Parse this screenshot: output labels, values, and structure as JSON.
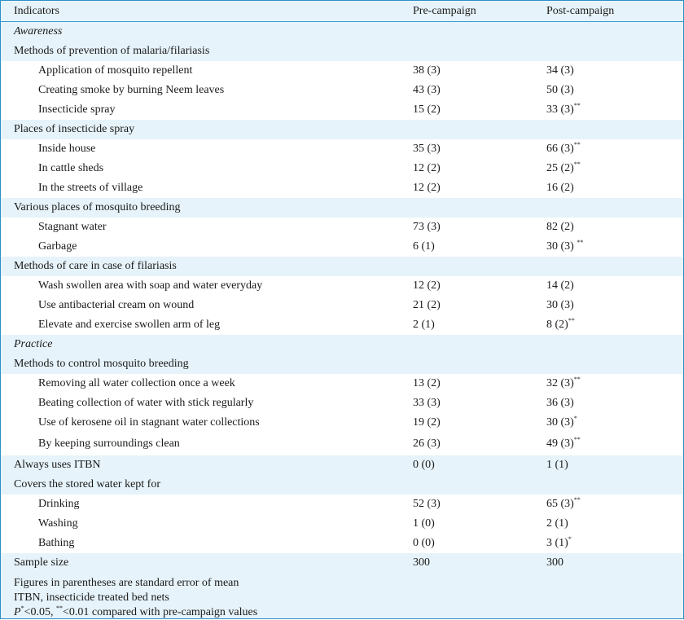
{
  "headers": {
    "indicators": "Indicators",
    "pre": "Pre-campaign",
    "post": "Post-campaign"
  },
  "rows": [
    {
      "type": "section",
      "label": "Awareness"
    },
    {
      "type": "group",
      "label": "Methods of prevention of malaria/filariasis"
    },
    {
      "type": "item",
      "label": "Application of mosquito repellent",
      "pre": "38 (3)",
      "post": "34 (3)",
      "post_sup": ""
    },
    {
      "type": "item",
      "label": "Creating smoke by burning Neem leaves",
      "pre": "43 (3)",
      "post": "50 (3)",
      "post_sup": ""
    },
    {
      "type": "item",
      "label": "Insecticide spray",
      "pre": "15 (2)",
      "post": "33 (3)",
      "post_sup": "**"
    },
    {
      "type": "group",
      "label": "Places of insecticide spray"
    },
    {
      "type": "item",
      "label": "Inside house",
      "pre": "35 (3)",
      "post": "66 (3)",
      "post_sup": "**"
    },
    {
      "type": "item",
      "label": "In cattle sheds",
      "pre": "12 (2)",
      "post": "25 (2)",
      "post_sup": "**"
    },
    {
      "type": "item",
      "label": "In the streets of village",
      "pre": "12 (2)",
      "post": "16 (2)",
      "post_sup": ""
    },
    {
      "type": "group",
      "label": "Various places of mosquito breeding"
    },
    {
      "type": "item",
      "label": "Stagnant water",
      "pre": "73 (3)",
      "post": "82 (2)",
      "post_sup": ""
    },
    {
      "type": "item",
      "label": "Garbage",
      "pre": "6 (1)",
      "post": "30 (3) ",
      "post_sup": "**"
    },
    {
      "type": "group",
      "label": "Methods of care in case of filariasis"
    },
    {
      "type": "item",
      "label": "Wash swollen area with soap and water everyday",
      "pre": "12 (2)",
      "post": "14 (2)",
      "post_sup": ""
    },
    {
      "type": "item",
      "label": "Use antibacterial cream on wound",
      "pre": "21 (2)",
      "post": "30 (3)",
      "post_sup": ""
    },
    {
      "type": "item",
      "label": "Elevate and exercise swollen arm of leg",
      "pre": "2 (1)",
      "post": "8 (2)",
      "post_sup": "**"
    },
    {
      "type": "section",
      "label": "Practice"
    },
    {
      "type": "group",
      "label": "Methods to control mosquito breeding"
    },
    {
      "type": "item",
      "label": "Removing all water collection once a week",
      "pre": "13 (2)",
      "post": "32 (3)",
      "post_sup": "**"
    },
    {
      "type": "item",
      "label": "Beating collection of water with stick regularly",
      "pre": "33 (3)",
      "post": "36 (3)",
      "post_sup": ""
    },
    {
      "type": "item",
      "label": "Use of kerosene oil in stagnant water collections",
      "pre": "19 (2)",
      "post": "30 (3)",
      "post_sup": "*"
    },
    {
      "type": "item",
      "label": "By keeping surroundings clean",
      "pre": "26 (3)",
      "post": "49 (3)",
      "post_sup": "**",
      "tall": true
    },
    {
      "type": "group",
      "label": "Always uses ITBN",
      "pre": "0 (0)",
      "post": "1 (1)",
      "post_sup": ""
    },
    {
      "type": "group",
      "label": "Covers the stored water kept for"
    },
    {
      "type": "item",
      "label": "Drinking",
      "pre": "52 (3)",
      "post": "65 (3)",
      "post_sup": "**"
    },
    {
      "type": "item",
      "label": "Washing",
      "pre": "1 (0)",
      "post": "2 (1)",
      "post_sup": ""
    },
    {
      "type": "item",
      "label": "Bathing",
      "pre": "0 (0)",
      "post": "3 (1)",
      "post_sup": "*"
    },
    {
      "type": "group",
      "label": "Sample size",
      "pre": "300",
      "post": "300",
      "post_sup": ""
    }
  ],
  "footnotes": {
    "line1": "Figures in parentheses are standard error of mean",
    "line2": "ITBN, insecticide treated bed nets",
    "line3_p": "P",
    "line3_sup1": "*",
    "line3_mid": "<0.05, ",
    "line3_sup2": "**",
    "line3_end": "<0.01 compared with pre-campaign values"
  },
  "colors": {
    "background": "#e6f3fa",
    "item_row": "#ffffff",
    "border": "#2b8fc6"
  }
}
